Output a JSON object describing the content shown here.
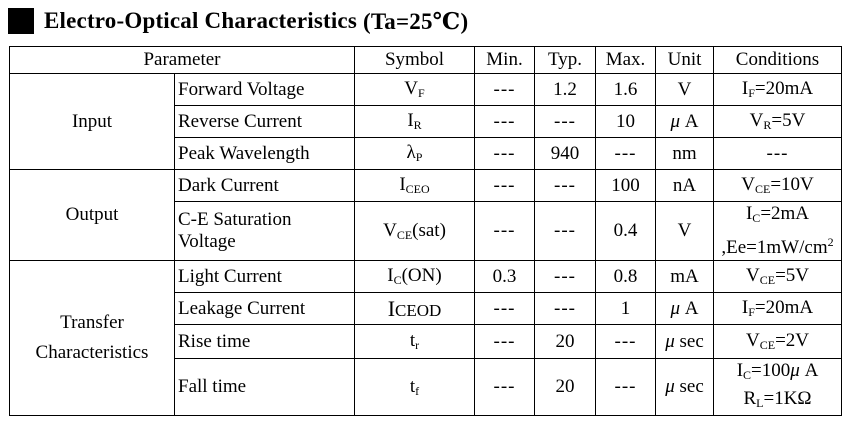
{
  "title": {
    "main": "Electro-Optical Characteristics",
    "condition": "(Ta=25℃)"
  },
  "headers": {
    "parameter": "Parameter",
    "symbol": "Symbol",
    "min": "Min.",
    "typ": "Typ.",
    "max": "Max.",
    "unit": "Unit",
    "conditions": "Conditions"
  },
  "groups": {
    "input": "Input",
    "output": "Output",
    "transfer_1": "Transfer",
    "transfer_2": "Characteristics"
  },
  "rows": {
    "forward_voltage": {
      "param": "Forward Voltage",
      "sym_main": "V",
      "sym_sub": "F",
      "min": "---",
      "typ": "1.2",
      "max": "1.6",
      "unit": "V",
      "cond_a": "I",
      "cond_sub": "F",
      "cond_b": "=20mA"
    },
    "reverse_current": {
      "param": "Reverse Current",
      "sym_main": "I",
      "sym_sub": "R",
      "min": "---",
      "typ": "---",
      "max": "10",
      "unit_mu": "μ",
      "unit": "A",
      "cond_a": "V",
      "cond_sub": "R",
      "cond_b": "=5V"
    },
    "peak_wavelength": {
      "param": "Peak Wavelength",
      "sym_main": "λ",
      "sym_sub": "P",
      "min": "---",
      "typ": "940",
      "max": "---",
      "unit": "nm",
      "cond": "---"
    },
    "dark_current": {
      "param": "Dark Current",
      "sym_main": "I",
      "sym_sub": "CEO",
      "min": "---",
      "typ": "---",
      "max": "100",
      "unit": "nA",
      "cond_a": "V",
      "cond_sub": "CE",
      "cond_b": "=10V"
    },
    "ce_saturation": {
      "param_1": "C-E Saturation",
      "param_2": "Voltage",
      "sym_main": "V",
      "sym_sub": "CE",
      "sym_tail": "(sat)",
      "min": "---",
      "typ": "---",
      "max": "0.4",
      "unit": "V",
      "cond1_a": "I",
      "cond1_sub": "C",
      "cond1_b": "=2mA",
      "cond2_a": ",Ee=1mW/cm",
      "cond2_sup": "2"
    },
    "light_current": {
      "param": "Light Current",
      "sym_main": "I",
      "sym_sub": "C",
      "sym_tail": "(ON)",
      "min": "0.3",
      "typ": "---",
      "max": "0.8",
      "unit": "mA",
      "cond_a": "V",
      "cond_sub": "CE",
      "cond_b": "=5V"
    },
    "leakage_current": {
      "param": "Leakage Current",
      "sym_main": "I",
      "sym_sub": "CEOD",
      "min": "---",
      "typ": "---",
      "max": "1",
      "unit_mu": "μ",
      "unit": "A",
      "cond_a": "I",
      "cond_sub": "F",
      "cond_b": "=20mA"
    },
    "rise_time": {
      "param": "Rise time",
      "sym_main": "t",
      "sym_sub": "r",
      "min": "---",
      "typ": "20",
      "max": "---",
      "unit_mu": "μ",
      "unit": "sec",
      "cond_a": "V",
      "cond_sub": "CE",
      "cond_b": "=2V"
    },
    "fall_time": {
      "param": "Fall time",
      "sym_main": "t",
      "sym_sub": "f",
      "min": "---",
      "typ": "20",
      "max": "---",
      "unit_mu": "μ",
      "unit": "sec",
      "cond1_a": "I",
      "cond1_sub": "C",
      "cond1_b": "=100",
      "cond1_mu": "μ",
      "cond1_c": "A",
      "cond2_a": "R",
      "cond2_sub": "L",
      "cond2_b": "=1KΩ"
    }
  }
}
